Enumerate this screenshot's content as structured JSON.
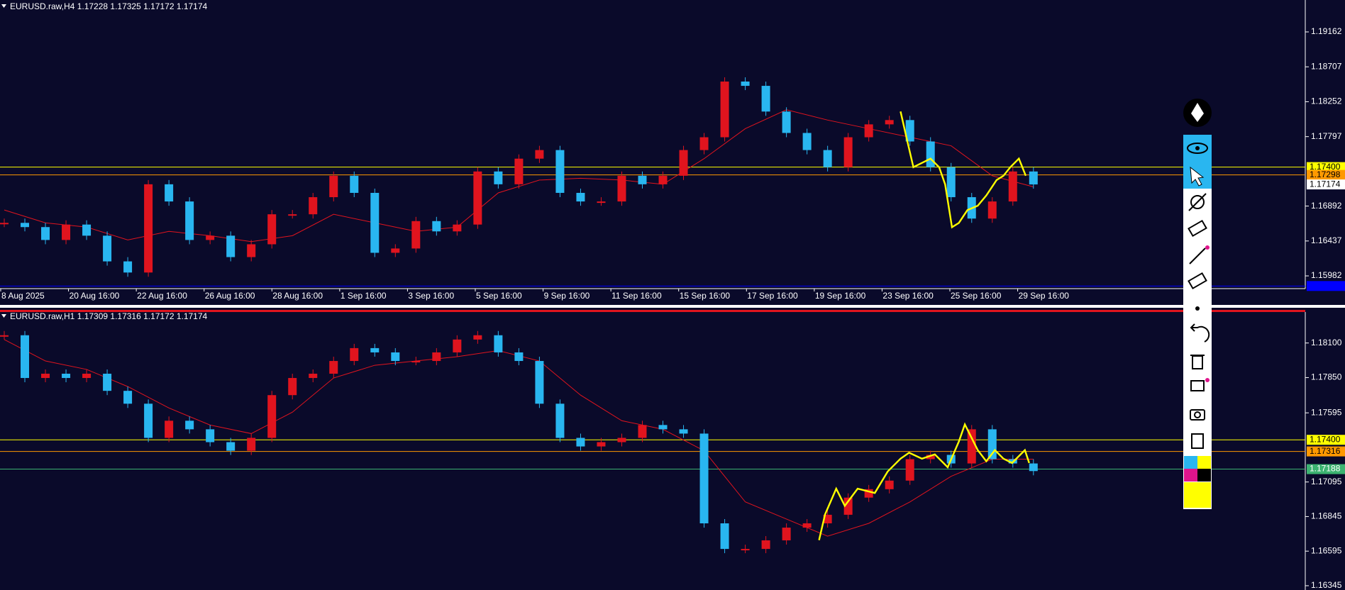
{
  "panels": [
    {
      "header": "EURUSD.raw,H4  1.17228 1.17325 1.17172 1.17174",
      "ylim": [
        1.15816,
        1.19578
      ],
      "yticks": [
        {
          "value": 1.19162,
          "label": "1.19162"
        },
        {
          "value": 1.18707,
          "label": "1.18707"
        },
        {
          "value": 1.18252,
          "label": "1.18252"
        },
        {
          "value": 1.17797,
          "label": "1.17797"
        },
        {
          "value": 1.16892,
          "label": "1.16892"
        },
        {
          "value": 1.16437,
          "label": "1.16437"
        },
        {
          "value": 1.15982,
          "label": "1.15982"
        }
      ],
      "levels": [
        {
          "value": 1.174,
          "label": "1.17400",
          "color": "#ffff00"
        },
        {
          "value": 1.17298,
          "label": "1.17298",
          "color": "#ff9900"
        },
        {
          "value": 1.17174,
          "label": "1.17174",
          "color": "#ffffff",
          "line": false
        },
        {
          "value": 1.1585,
          "color": "#0000ff"
        }
      ],
      "closes": [
        1.16673,
        1.16618,
        1.1645,
        1.16651,
        1.16506,
        1.16171,
        1.16026,
        1.17176,
        1.16952,
        1.1645,
        1.16506,
        1.16227,
        1.16394,
        1.16785,
        1.16785,
        1.17008,
        1.17287,
        1.17064,
        1.16283,
        1.16339,
        1.16696,
        1.16562,
        1.16651,
        1.17343,
        1.17176,
        1.1751,
        1.17622,
        1.17064,
        1.16952,
        1.16952,
        1.17287,
        1.17176,
        1.17287,
        1.17622,
        1.17789,
        1.18515,
        1.18459,
        1.18124,
        1.17845,
        1.17622,
        1.17399,
        1.17789,
        1.17957,
        1.18013,
        1.17734,
        1.17399,
        1.17008,
        1.16729,
        1.16952,
        1.17343,
        1.17174
      ],
      "ma": [
        1.16841,
        1.16673,
        1.16618,
        1.1645,
        1.16562,
        1.16506,
        1.16428,
        1.16506,
        1.16785,
        1.16673,
        1.16562,
        1.16618,
        1.17064,
        1.17231,
        1.17254,
        1.17231,
        1.17176,
        1.1751,
        1.17901,
        1.18147,
        1.18013,
        1.17901,
        1.17789,
        1.17678,
        1.17287,
        1.17142
      ],
      "dates": [
        "8 Aug 2025",
        "20 Aug 16:00",
        "22 Aug 16:00",
        "26 Aug 16:00",
        "28 Aug 16:00",
        "1 Sep 16:00",
        "3 Sep 16:00",
        "5 Sep 16:00",
        "9 Sep 16:00",
        "11 Sep 16:00",
        "15 Sep 16:00",
        "17 Sep 16:00",
        "19 Sep 16:00",
        "23 Sep 16:00",
        "25 Sep 16:00",
        "29 Sep 16:00"
      ]
    },
    {
      "header": "EURUSD.raw,H1  1.17309 1.17316 1.17172 1.17174",
      "ylim": [
        1.16314,
        1.18324
      ],
      "yticks": [
        {
          "value": 1.181,
          "label": "1.18100"
        },
        {
          "value": 1.1785,
          "label": "1.17850"
        },
        {
          "value": 1.17595,
          "label": "1.17595"
        },
        {
          "value": 1.17095,
          "label": "1.17095"
        },
        {
          "value": 1.16845,
          "label": "1.16845"
        },
        {
          "value": 1.16595,
          "label": "1.16595"
        },
        {
          "value": 1.16345,
          "label": "1.16345"
        }
      ],
      "levels": [
        {
          "value": 1.174,
          "label": "1.17400",
          "color": "#ffff00"
        },
        {
          "value": 1.17316,
          "label": "1.17316",
          "color": "#ff9900"
        },
        {
          "value": 1.17188,
          "label": "1.17188",
          "color": "#3cb371"
        }
      ],
      "closes": [
        1.18156,
        1.17847,
        1.17878,
        1.17847,
        1.17878,
        1.17754,
        1.17661,
        1.17414,
        1.17538,
        1.17476,
        1.17383,
        1.17321,
        1.17414,
        1.17723,
        1.17847,
        1.17878,
        1.1797,
        1.18063,
        1.18032,
        1.1797,
        1.1797,
        1.18032,
        1.18125,
        1.18156,
        1.18032,
        1.1797,
        1.17661,
        1.17414,
        1.17352,
        1.17383,
        1.17414,
        1.17507,
        1.17476,
        1.17445,
        1.16796,
        1.16611,
        1.16611,
        1.16673,
        1.16765,
        1.16796,
        1.16858,
        1.16982,
        1.17043,
        1.17105,
        1.1726,
        1.17291,
        1.17229,
        1.17476,
        1.1726,
        1.17229,
        1.17174
      ],
      "ma": [
        1.18125,
        1.1797,
        1.17909,
        1.17785,
        1.1763,
        1.17507,
        1.17445,
        1.176,
        1.17847,
        1.17939,
        1.1797,
        1.18001,
        1.18045,
        1.1797,
        1.17723,
        1.17538,
        1.17476,
        1.17321,
        1.16951,
        1.16827,
        1.16703,
        1.16796,
        1.16951,
        1.17136,
        1.1726,
        1.1726
      ]
    }
  ],
  "up_color": "#e0141e",
  "down_color": "#29b6f0",
  "ma_color": "#e0141e"
}
